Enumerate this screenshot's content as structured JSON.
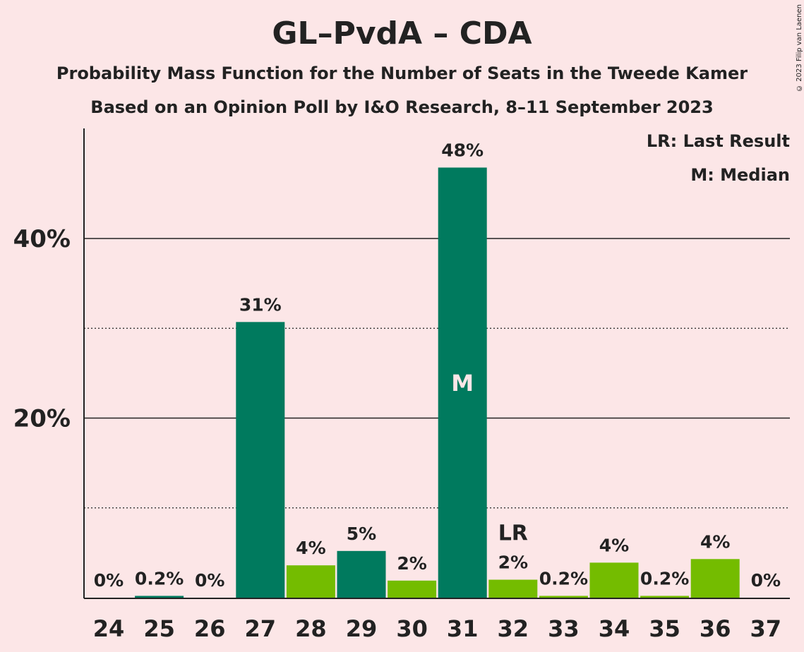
{
  "header": {
    "title": "GL–PvdA – CDA",
    "subtitle1": "Probability Mass Function for the Number of Seats in the Tweede Kamer",
    "subtitle2": "Based on an Opinion Poll by I&O Research, 8–11 September 2023",
    "copyright": "© 2023 Filip van Laenen"
  },
  "legend": {
    "last_result": "LR: Last Result",
    "median": "M: Median"
  },
  "chart_data": {
    "type": "bar",
    "title": "GL–PvdA – CDA",
    "categories": [
      "24",
      "25",
      "26",
      "27",
      "28",
      "29",
      "30",
      "31",
      "32",
      "33",
      "34",
      "35",
      "36",
      "37"
    ],
    "values": [
      0,
      0.2,
      0,
      30.7,
      3.6,
      5.2,
      1.9,
      47.9,
      2.0,
      0.2,
      3.9,
      0.2,
      4.3,
      0
    ],
    "labels": [
      "0%",
      "0.2%",
      "0%",
      "31%",
      "4%",
      "5%",
      "2%",
      "48%",
      "2%",
      "0.2%",
      "4%",
      "0.2%",
      "4%",
      "0%"
    ],
    "series": [
      {
        "name": "GL–PvdA",
        "color": "#007a5e",
        "categories": [
          "25",
          "27",
          "29",
          "31"
        ]
      },
      {
        "name": "CDA",
        "color": "#74bc00",
        "categories": [
          "28",
          "30",
          "32",
          "33",
          "34",
          "35",
          "36"
        ]
      }
    ],
    "ylim": [
      0,
      52
    ],
    "yticks": [
      20,
      40
    ],
    "ytick_labels": [
      "20%",
      "40%"
    ],
    "minor_yticks": [
      10,
      30
    ],
    "median_category": "31",
    "median_marker": "M",
    "last_result_category": "32",
    "last_result_marker": "LR",
    "grid": true,
    "legend_position": "top-right"
  }
}
